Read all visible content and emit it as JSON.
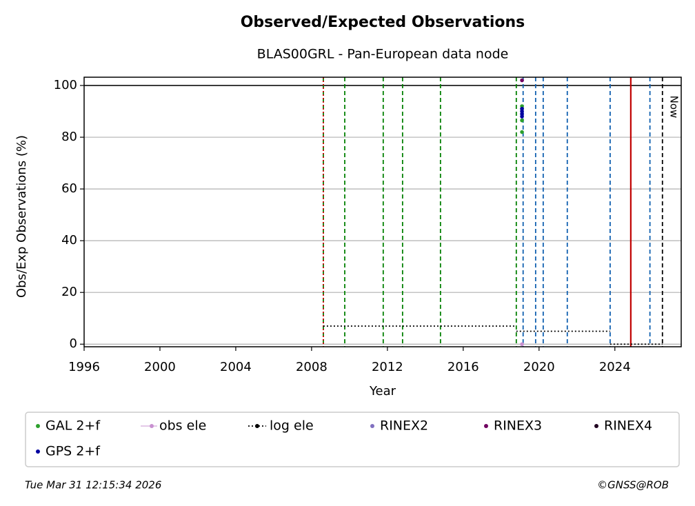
{
  "chart_data": {
    "type": "scatter",
    "title": "Observed/Expected Observations",
    "subtitle": "BLAS00GRL - Pan-European data node",
    "x_label": "Year",
    "y_label": "Obs/Exp Observations (%)",
    "xlim": [
      1996,
      2027.5
    ],
    "ylim": [
      -1,
      103.2
    ],
    "xticks": [
      1996,
      2000,
      2004,
      2008,
      2012,
      2016,
      2020,
      2024
    ],
    "yticks": [
      0,
      20,
      40,
      60,
      80,
      100
    ],
    "grid": true,
    "hline": {
      "y": 100,
      "color": "#000000"
    },
    "vlines": [
      {
        "color": "#008000",
        "style": "dashed",
        "x": [
          2008.62,
          2009.75,
          2011.78,
          2012.8,
          2014.8,
          2018.8
        ]
      },
      {
        "color": "#cc0000",
        "style": "dotted",
        "x": [
          2008.62
        ]
      },
      {
        "color": "#1060b0",
        "style": "dashed",
        "x": [
          2019.16,
          2019.82,
          2020.22,
          2021.49,
          2023.75,
          2025.85
        ]
      },
      {
        "color": "#c00000",
        "style": "solid",
        "x": [
          2024.84
        ]
      },
      {
        "color": "#000000",
        "style": "dashed",
        "x": [
          2026.51
        ]
      }
    ],
    "annotation": {
      "text": "Now",
      "x": 2026.51
    },
    "series": [
      {
        "name": "GAL 2+f",
        "color": "#2ca02c",
        "kind": "points",
        "x": [
          2019.1,
          2019.1,
          2019.1,
          2019.1
        ],
        "values": [
          92,
          91,
          86.5,
          82
        ]
      },
      {
        "name": "obs ele",
        "color": "#c890d0",
        "kind": "points",
        "x": [
          2019.1
        ],
        "values": [
          0
        ]
      },
      {
        "name": "log ele",
        "color": "#000000",
        "kind": "steps",
        "x_start": [
          2008.62,
          2018.8,
          2023.75
        ],
        "x_end": [
          2018.8,
          2023.75,
          2026.51
        ],
        "values": [
          7,
          5,
          0
        ]
      },
      {
        "name": "RINEX2",
        "color": "#8070c0",
        "kind": "points",
        "x": [],
        "values": []
      },
      {
        "name": "RINEX3",
        "color": "#700060",
        "kind": "points",
        "x": [
          2019.1
        ],
        "values": [
          102
        ]
      },
      {
        "name": "RINEX4",
        "color": "#200020",
        "kind": "points",
        "x": [],
        "values": []
      },
      {
        "name": "GPS 2+f",
        "color": "#0000a0",
        "kind": "points",
        "x": [
          2019.1,
          2019.1,
          2019.1,
          2019.1
        ],
        "values": [
          91,
          90,
          89,
          88
        ]
      }
    ],
    "timestamp": "Tue Mar 31 12:15:34 2026",
    "credit": "©GNSS@ROB"
  }
}
